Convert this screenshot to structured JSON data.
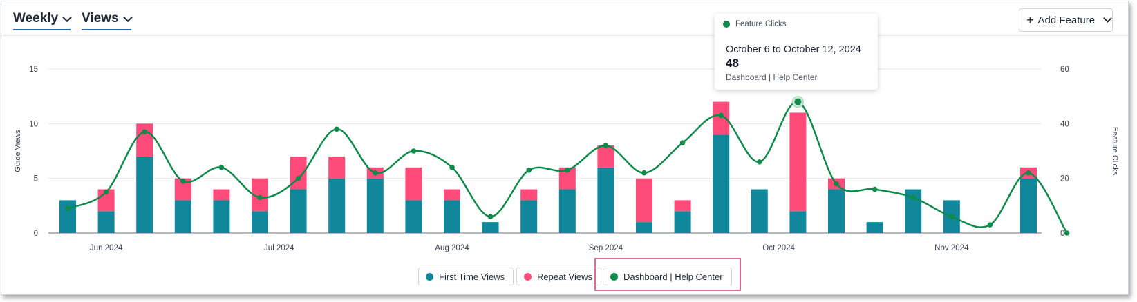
{
  "header": {
    "period_label": "Weekly",
    "metric_label": "Views",
    "add_button_label": "Add Feature"
  },
  "tooltip": {
    "series_name": "Feature Clicks",
    "date_range": "October 6 to October 12, 2024",
    "value": "48",
    "feature_label": "Dashboard | Help Center"
  },
  "legend": {
    "items": [
      {
        "label": "First Time Views",
        "color": "#11879b"
      },
      {
        "label": "Repeat Views",
        "color": "#ff4b79"
      },
      {
        "label": "Dashboard | Help Center",
        "color": "#0e8a4a"
      }
    ]
  },
  "chart_data": {
    "type": "bar",
    "stacked": true,
    "left_axis_label": "Guide Views",
    "right_axis_label": "Feature Clicks",
    "left_ylim": [
      0,
      15
    ],
    "left_ticks": [
      "0",
      "5",
      "10",
      "15"
    ],
    "right_ylim": [
      0,
      60
    ],
    "right_ticks": [
      "0",
      "20",
      "40",
      "60"
    ],
    "grid": true,
    "x_tick_labels": [
      "Jun 2024",
      "Jul 2024",
      "Aug 2024",
      "Sep 2024",
      "Oct 2024",
      "Nov 2024"
    ],
    "x_tick_positions": [
      1,
      5.5,
      10,
      14,
      18.5,
      23
    ],
    "series": [
      {
        "name": "First Time Views",
        "axis": "left",
        "color": "#11879b",
        "values": [
          3,
          2,
          7,
          3,
          3,
          2,
          4,
          5,
          5,
          3,
          3,
          1,
          3,
          4,
          6,
          1,
          2,
          9,
          4,
          2,
          4,
          1,
          4,
          3,
          0,
          5,
          0
        ]
      },
      {
        "name": "Repeat Views",
        "axis": "left",
        "color": "#ff4b79",
        "values": [
          0,
          2,
          3,
          2,
          1,
          3,
          3,
          2,
          1,
          3,
          1,
          0,
          1,
          2,
          2,
          4,
          1,
          3,
          0,
          9,
          1,
          0,
          0,
          0,
          0,
          1,
          0
        ]
      },
      {
        "name": "Dashboard | Help Center",
        "axis": "right",
        "type": "line",
        "color": "#0e8a4a",
        "values": [
          9,
          15,
          37,
          19,
          24,
          13,
          20,
          38,
          22,
          30,
          24,
          6,
          23,
          23,
          32,
          22,
          33,
          43,
          26,
          48,
          18,
          16,
          13,
          6,
          3,
          22,
          0
        ]
      }
    ],
    "highlighted_index": 19
  }
}
